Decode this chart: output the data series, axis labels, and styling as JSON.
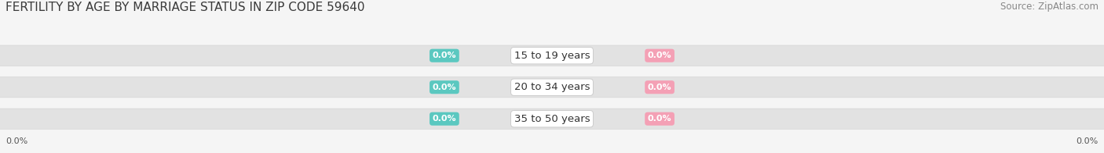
{
  "title": "FERTILITY BY AGE BY MARRIAGE STATUS IN ZIP CODE 59640",
  "source": "Source: ZipAtlas.com",
  "categories": [
    "15 to 19 years",
    "20 to 34 years",
    "35 to 50 years"
  ],
  "married_values": [
    "0.0%",
    "0.0%",
    "0.0%"
  ],
  "unmarried_values": [
    "0.0%",
    "0.0%",
    "0.0%"
  ],
  "married_color": "#5bc8c0",
  "unmarried_color": "#f4a0b5",
  "bar_bg_color": "#e8e8e8",
  "bar_height": 0.62,
  "title_fontsize": 11,
  "source_fontsize": 8.5,
  "value_fontsize": 8,
  "category_fontsize": 9.5,
  "axis_label_fontsize": 8,
  "background_color": "#f5f5f5",
  "axis_value_left": "0.0%",
  "axis_value_right": "0.0%"
}
